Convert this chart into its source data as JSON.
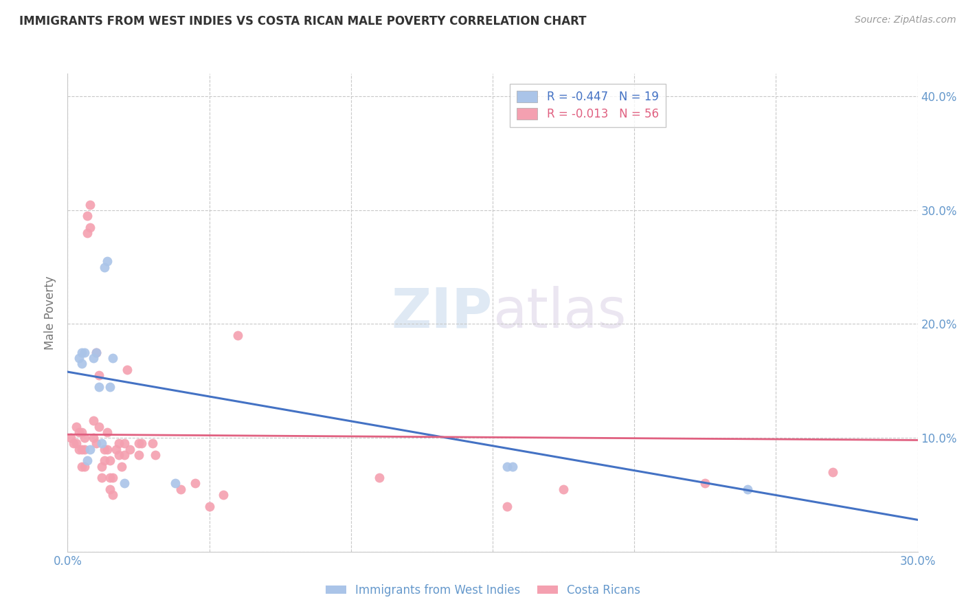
{
  "title": "IMMIGRANTS FROM WEST INDIES VS COSTA RICAN MALE POVERTY CORRELATION CHART",
  "source": "Source: ZipAtlas.com",
  "ylabel": "Male Poverty",
  "xlim": [
    0.0,
    0.3
  ],
  "ylim": [
    0.0,
    0.42
  ],
  "xticks": [
    0.0,
    0.05,
    0.1,
    0.15,
    0.2,
    0.25,
    0.3
  ],
  "yticks": [
    0.0,
    0.1,
    0.2,
    0.3,
    0.4
  ],
  "right_ytick_labels": [
    "",
    "10.0%",
    "20.0%",
    "30.0%",
    "40.0%"
  ],
  "xtick_labels": [
    "0.0%",
    "",
    "",
    "",
    "",
    "",
    "30.0%"
  ],
  "grid_color": "#c8c8c8",
  "background_color": "#ffffff",
  "watermark_zip": "ZIP",
  "watermark_atlas": "atlas",
  "legend_R1": "R = -0.447",
  "legend_N1": "N = 19",
  "legend_R2": "R = -0.013",
  "legend_N2": "N = 56",
  "series1_color": "#aac4e8",
  "series2_color": "#f4a0b0",
  "line1_color": "#4472c4",
  "line2_color": "#e06080",
  "label_color": "#6699cc",
  "series1_label": "Immigrants from West Indies",
  "series2_label": "Costa Ricans",
  "series1_x": [
    0.004,
    0.005,
    0.005,
    0.006,
    0.007,
    0.008,
    0.009,
    0.01,
    0.011,
    0.012,
    0.013,
    0.014,
    0.015,
    0.016,
    0.02,
    0.038,
    0.155,
    0.157,
    0.24
  ],
  "series1_y": [
    0.17,
    0.175,
    0.165,
    0.175,
    0.08,
    0.09,
    0.17,
    0.175,
    0.145,
    0.095,
    0.25,
    0.255,
    0.145,
    0.17,
    0.06,
    0.06,
    0.075,
    0.075,
    0.055
  ],
  "series2_x": [
    0.001,
    0.002,
    0.003,
    0.003,
    0.004,
    0.004,
    0.005,
    0.005,
    0.005,
    0.006,
    0.006,
    0.006,
    0.007,
    0.007,
    0.008,
    0.008,
    0.009,
    0.009,
    0.01,
    0.01,
    0.011,
    0.011,
    0.012,
    0.012,
    0.013,
    0.013,
    0.014,
    0.014,
    0.015,
    0.015,
    0.015,
    0.016,
    0.016,
    0.017,
    0.018,
    0.018,
    0.019,
    0.02,
    0.02,
    0.021,
    0.022,
    0.025,
    0.025,
    0.026,
    0.03,
    0.031,
    0.04,
    0.045,
    0.05,
    0.055,
    0.06,
    0.11,
    0.155,
    0.175,
    0.225,
    0.27
  ],
  "series2_y": [
    0.1,
    0.095,
    0.11,
    0.095,
    0.105,
    0.09,
    0.105,
    0.09,
    0.075,
    0.1,
    0.09,
    0.075,
    0.295,
    0.28,
    0.305,
    0.285,
    0.115,
    0.1,
    0.175,
    0.095,
    0.155,
    0.11,
    0.075,
    0.065,
    0.09,
    0.08,
    0.105,
    0.09,
    0.08,
    0.065,
    0.055,
    0.065,
    0.05,
    0.09,
    0.095,
    0.085,
    0.075,
    0.095,
    0.085,
    0.16,
    0.09,
    0.095,
    0.085,
    0.095,
    0.095,
    0.085,
    0.055,
    0.06,
    0.04,
    0.05,
    0.19,
    0.065,
    0.04,
    0.055,
    0.06,
    0.07
  ],
  "line1_x0": 0.0,
  "line1_y0": 0.158,
  "line1_x1": 0.3,
  "line1_y1": 0.028,
  "line2_x0": 0.0,
  "line2_y0": 0.103,
  "line2_x1": 0.3,
  "line2_y1": 0.098
}
